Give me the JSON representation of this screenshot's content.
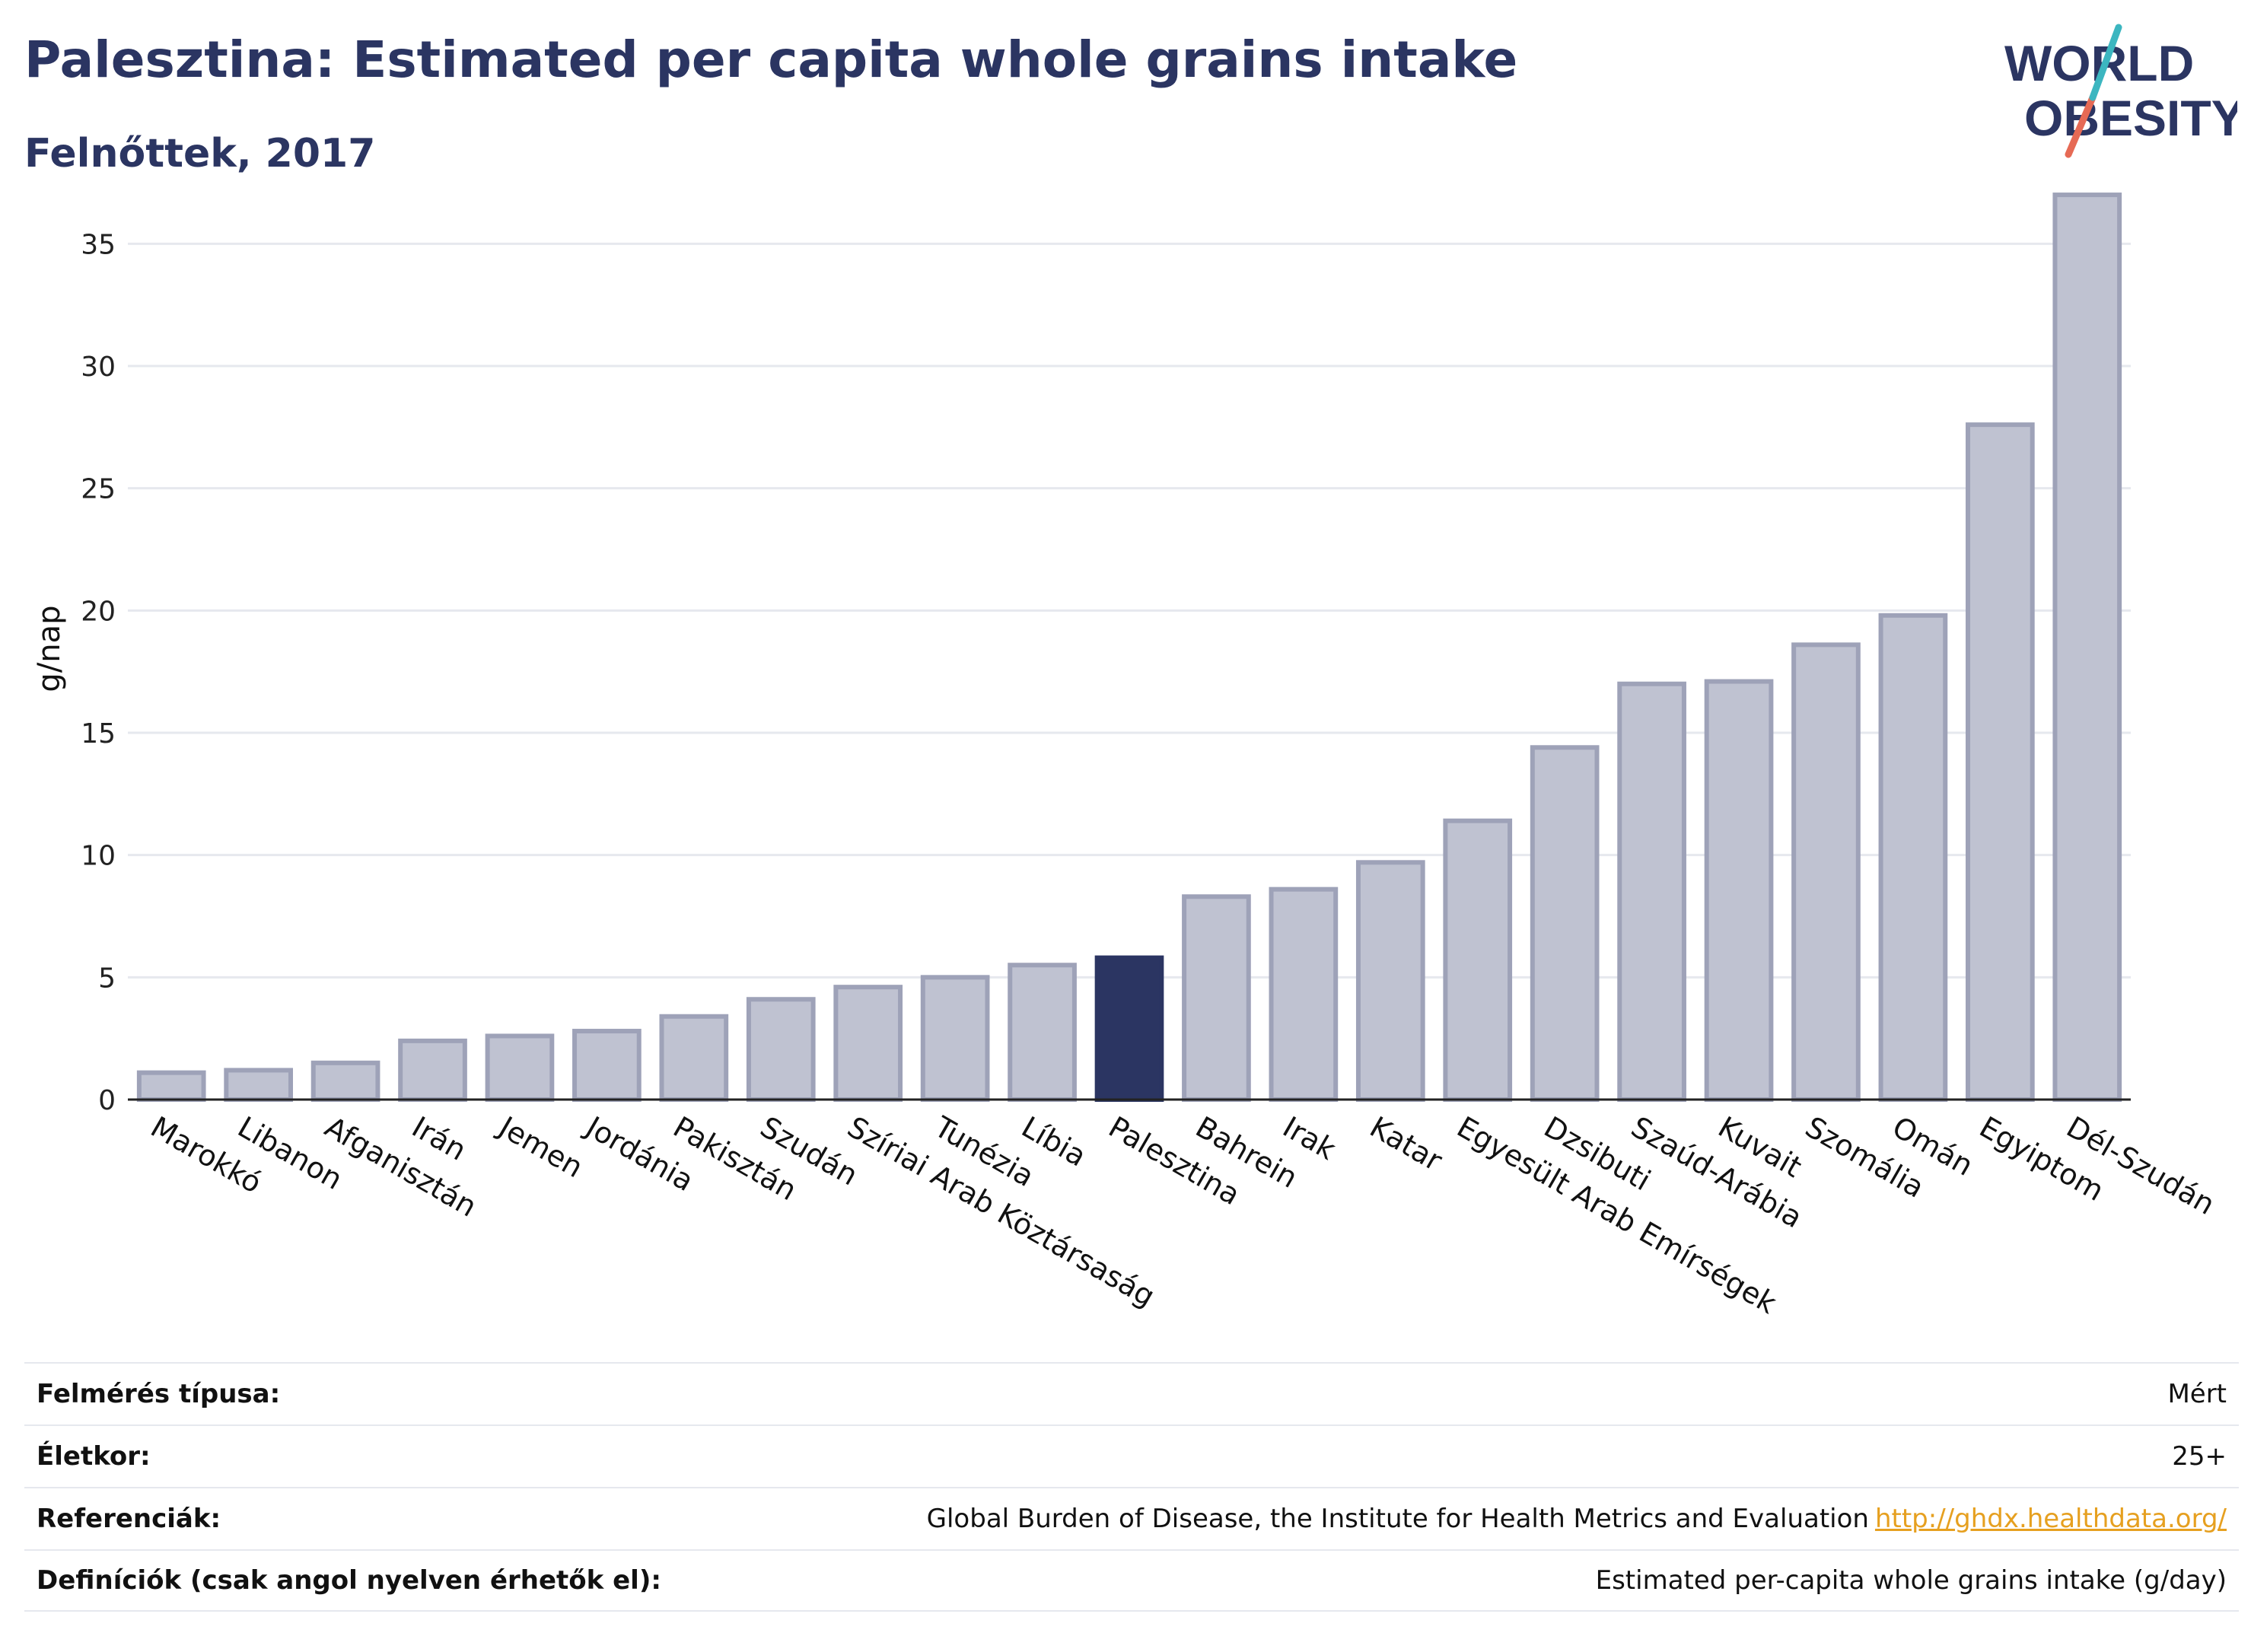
{
  "header": {
    "title": "Palesztina: Estimated per capita whole grains intake",
    "subtitle": "Felnőttek, 2017"
  },
  "logo": {
    "line1": "WORLD",
    "line2": "OBESITY"
  },
  "colors": {
    "highlight": "#2b3562",
    "bar_fill": "#bfc2d1",
    "bar_stroke": "#9ea2b8",
    "grid": "#e6e8ee",
    "link": "#e6a020",
    "logo_teal": "#3cb6c0",
    "logo_coral": "#e66a55"
  },
  "chart_data": {
    "type": "bar",
    "ylabel": "g/nap",
    "ylim": [
      0,
      37.5
    ],
    "yticks": [
      0,
      5,
      10,
      15,
      20,
      25,
      30,
      35
    ],
    "grid": true,
    "highlight": "Palesztina",
    "categories": [
      "Marokkó",
      "Libanon",
      "Afganisztán",
      "Irán",
      "Jemen",
      "Jordánia",
      "Pakisztán",
      "Szudán",
      "Szíriai Arab Köztársaság",
      "Tunézia",
      "Líbia",
      "Palesztina",
      "Bahrein",
      "Irak",
      "Katar",
      "Egyesült Arab Emírségek",
      "Dzsibuti",
      "Szaúd-Arábia",
      "Kuvait",
      "Szomália",
      "Omán",
      "Egyiptom",
      "Dél-Szudán"
    ],
    "values": [
      1.1,
      1.2,
      1.5,
      2.4,
      2.6,
      2.8,
      3.4,
      4.1,
      4.6,
      5.0,
      5.5,
      5.8,
      8.3,
      8.6,
      9.7,
      11.4,
      14.4,
      17.0,
      17.1,
      18.6,
      19.8,
      27.6,
      37.0
    ]
  },
  "info": [
    {
      "label": "Felmérés típusa:",
      "value": "Mért"
    },
    {
      "label": "Életkor:",
      "value": "25+"
    },
    {
      "label": "Referenciák:",
      "value": "Global Burden of Disease, the Institute for Health Metrics and Evaluation",
      "link": "http://ghdx.healthdata.org/"
    },
    {
      "label": "Definíciók (csak angol nyelven érhetők el):",
      "value": "Estimated per-capita whole grains intake (g/day)"
    }
  ]
}
